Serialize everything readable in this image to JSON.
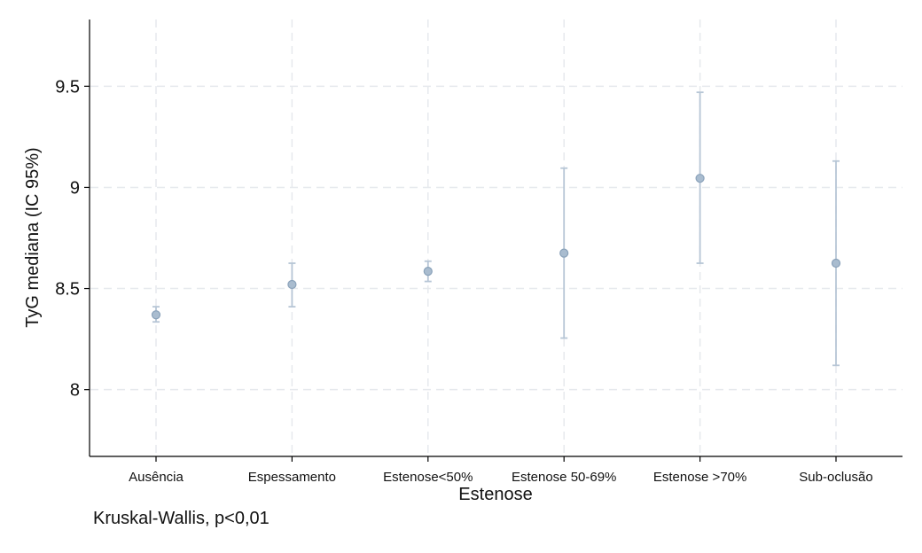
{
  "chart_data": {
    "type": "scatter",
    "subtype": "point-with-error-bars",
    "categories": [
      "Ausência",
      "Espessamento",
      "Estenose<50%",
      "Estenose 50-69%",
      "Estenose >70%",
      "Sub-oclusão"
    ],
    "series": [
      {
        "values": [
          8.37,
          8.52,
          8.585,
          8.675,
          9.045,
          8.625
        ],
        "ci_lower": [
          8.335,
          8.41,
          8.535,
          8.255,
          8.625,
          8.12
        ],
        "ci_upper": [
          8.41,
          8.625,
          8.635,
          9.095,
          9.47,
          9.13
        ]
      }
    ],
    "xlabel": "Estenose",
    "ylabel": "TyG mediana (IC 95%)",
    "ylim": [
      7.67,
      9.83
    ],
    "yticks": [
      8,
      8.5,
      9,
      9.5
    ],
    "ytick_labels": [
      "8",
      "8.5",
      "9",
      "9.5"
    ],
    "grid": true,
    "grid_style": "dashed",
    "colors": {
      "marker": "#a9bccf",
      "marker_edge": "#8aa2ba",
      "errorbar": "#b7c6d6",
      "grid": "#e6e9ed",
      "axis": "#000000"
    }
  },
  "footnote": "Kruskal-Wallis, p<0,01"
}
